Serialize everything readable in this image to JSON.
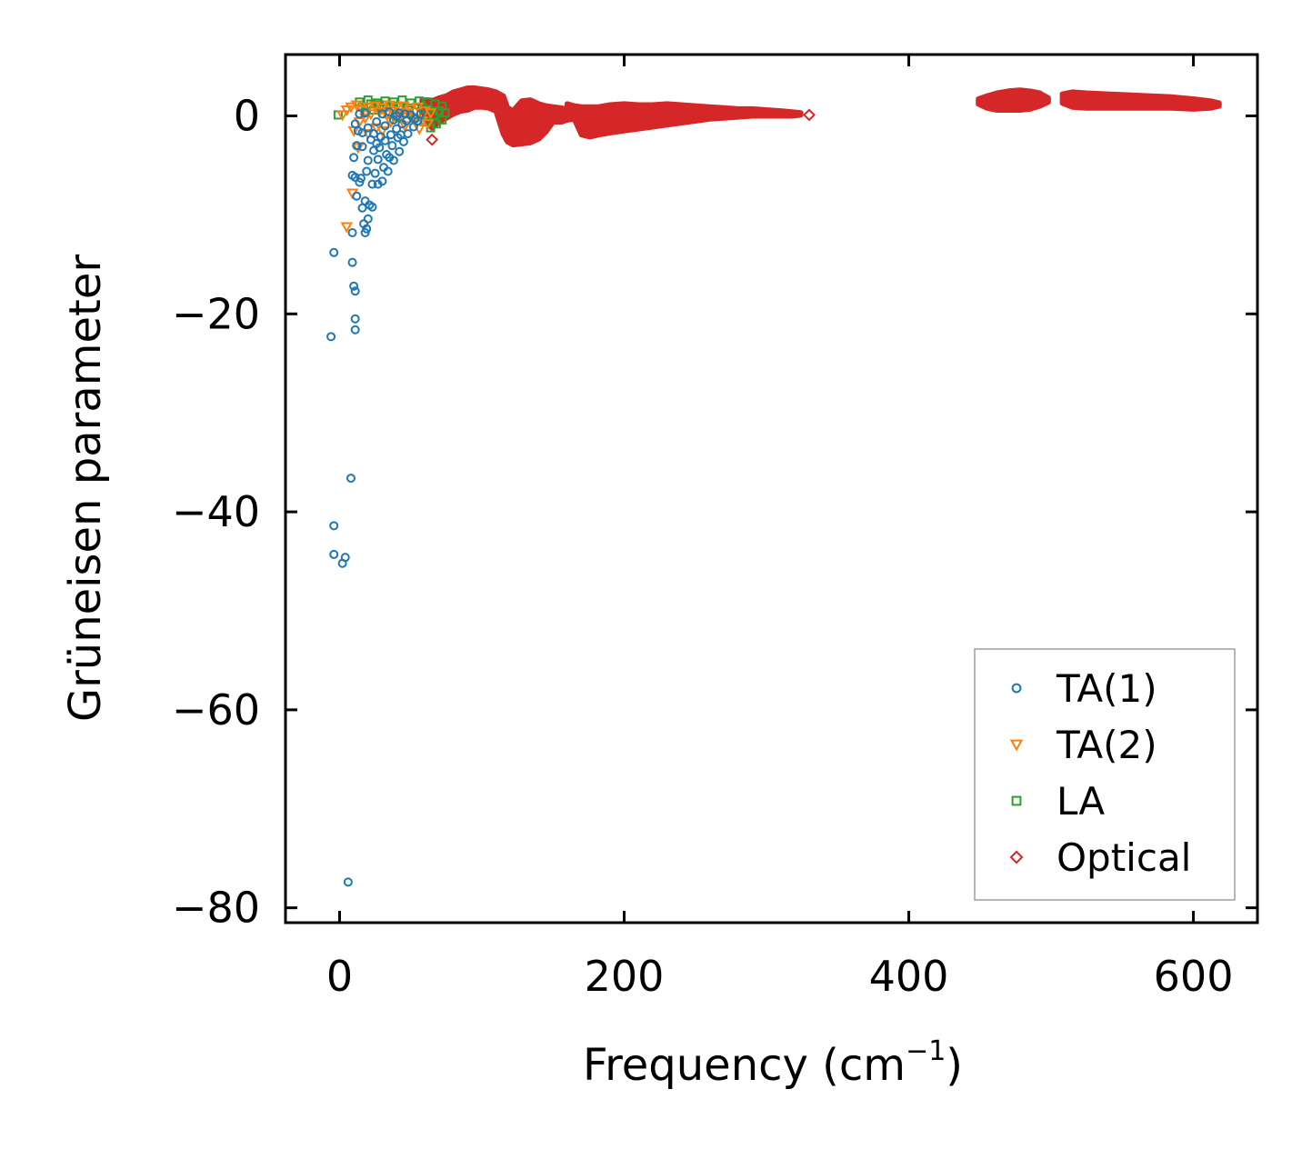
{
  "chart_data": {
    "type": "scatter",
    "title": "",
    "xlabel": "Frequency (cm",
    "xlabel_sup": "−1",
    "xlabel_close": ")",
    "ylabel": "Grüneisen parameter",
    "xlim": [
      -38,
      645
    ],
    "ylim": [
      -81.5,
      6.2
    ],
    "xticks": [
      0,
      200,
      400,
      600
    ],
    "xtick_labels": [
      "0",
      "200",
      "400",
      "600"
    ],
    "yticks": [
      0,
      -20,
      -40,
      -60,
      -80
    ],
    "ytick_labels": [
      "0",
      "−20",
      "−40",
      "−60",
      "−80"
    ],
    "grid": false,
    "legend_position": "lower-right",
    "series": [
      {
        "name": "TA(1)",
        "marker": "circle",
        "color": "#1f77b4",
        "points": [
          [
            -6,
            -22.3
          ],
          [
            -4,
            -13.8
          ],
          [
            -4,
            -41.4
          ],
          [
            -4,
            -44.3
          ],
          [
            2,
            -45.2
          ],
          [
            4,
            -44.6
          ],
          [
            6,
            -77.4
          ],
          [
            8,
            -36.6
          ],
          [
            9,
            -11.8
          ],
          [
            9,
            -14.8
          ],
          [
            10,
            -17.2
          ],
          [
            11,
            -17.7
          ],
          [
            11,
            -20.5
          ],
          [
            11,
            -21.6
          ],
          [
            9,
            -6
          ],
          [
            11,
            -6.2
          ],
          [
            12,
            -8.1
          ],
          [
            10,
            -4.2
          ],
          [
            12,
            -3
          ],
          [
            14,
            -6.7
          ],
          [
            16,
            -9.3
          ],
          [
            17,
            -10.9
          ],
          [
            18,
            -11.8
          ],
          [
            19,
            -11.4
          ],
          [
            20,
            -10.4
          ],
          [
            21,
            -9
          ],
          [
            23,
            -9.2
          ],
          [
            18,
            -8.6
          ],
          [
            15,
            -6.3
          ],
          [
            13,
            -1.5
          ],
          [
            11,
            -0.8
          ],
          [
            16,
            -3.1
          ],
          [
            20,
            -4.5
          ],
          [
            25,
            -5.8
          ],
          [
            30,
            -6.6
          ],
          [
            34,
            -5.6
          ],
          [
            38,
            -4.5
          ],
          [
            42,
            -3.6
          ],
          [
            45,
            -2.6
          ],
          [
            48,
            -1.8
          ],
          [
            52,
            -1.1
          ],
          [
            55,
            -0.5
          ],
          [
            28,
            -3.2
          ],
          [
            32,
            -2.5
          ],
          [
            36,
            -1.9
          ],
          [
            40,
            -1.3
          ],
          [
            44,
            -0.8
          ],
          [
            24,
            -1.8
          ],
          [
            20,
            -1.2
          ],
          [
            26,
            -0.6
          ],
          [
            30,
            0.2
          ],
          [
            35,
            0.4
          ],
          [
            40,
            0
          ],
          [
            46,
            0.2
          ],
          [
            50,
            0.1
          ],
          [
            18,
            0.3
          ],
          [
            14,
            0.2
          ],
          [
            22,
            -2.4
          ],
          [
            27,
            -4.4
          ],
          [
            33,
            -3.9
          ],
          [
            37,
            -3
          ],
          [
            41,
            -2.2
          ],
          [
            31,
            -5.2
          ],
          [
            35,
            -4.2
          ],
          [
            24,
            -3.5
          ],
          [
            29,
            -2.1
          ],
          [
            43,
            -1.9
          ],
          [
            47,
            -0.5
          ],
          [
            53,
            -0.3
          ],
          [
            57,
            0.2
          ],
          [
            19,
            -5.6
          ],
          [
            23,
            -6.9
          ],
          [
            27,
            -6.9
          ],
          [
            16,
            -1.7
          ],
          [
            26,
            -2.8
          ],
          [
            32,
            -1
          ],
          [
            38,
            -0.4
          ],
          [
            42,
            0.3
          ]
        ]
      },
      {
        "name": "TA(2)",
        "marker": "triangle",
        "color": "#ff7f0e",
        "points": [
          [
            2,
            0.1
          ],
          [
            5,
            0.6
          ],
          [
            8,
            0.9
          ],
          [
            12,
            1.1
          ],
          [
            16,
            0.6
          ],
          [
            20,
            0.9
          ],
          [
            25,
            1
          ],
          [
            30,
            0.8
          ],
          [
            35,
            1.1
          ],
          [
            40,
            0.9
          ],
          [
            45,
            1
          ],
          [
            50,
            0.7
          ],
          [
            55,
            0.9
          ],
          [
            60,
            0.5
          ],
          [
            64,
            0.3
          ],
          [
            14,
            -0.6
          ],
          [
            18,
            -0.2
          ],
          [
            22,
            0.2
          ],
          [
            28,
            0.4
          ],
          [
            33,
            0.2
          ],
          [
            38,
            0.5
          ],
          [
            43,
            0.1
          ],
          [
            48,
            0.3
          ],
          [
            53,
            -0.3
          ],
          [
            58,
            -0.5
          ],
          [
            62,
            -0.8
          ],
          [
            10,
            -1.5
          ],
          [
            9,
            -7.8
          ],
          [
            5,
            -11.2
          ],
          [
            13,
            -3.2
          ],
          [
            26,
            -1.2
          ],
          [
            36,
            -0.6
          ],
          [
            46,
            -1
          ],
          [
            56,
            -1.3
          ],
          [
            20,
            -1.8
          ],
          [
            30,
            -1.5
          ]
        ]
      },
      {
        "name": "LA",
        "marker": "square",
        "color": "#2ca02c",
        "points": [
          [
            -1,
            0.1
          ],
          [
            14,
            1.4
          ],
          [
            20,
            1.6
          ],
          [
            26,
            1.3
          ],
          [
            32,
            1.5
          ],
          [
            38,
            1.4
          ],
          [
            44,
            1.6
          ],
          [
            50,
            1.3
          ],
          [
            56,
            1.5
          ],
          [
            62,
            1.4
          ],
          [
            67,
            1.2
          ],
          [
            72,
            1
          ],
          [
            74,
            0.3
          ],
          [
            72,
            -0.4
          ],
          [
            68,
            -0.8
          ],
          [
            64,
            -1.2
          ],
          [
            60,
            -0.6
          ],
          [
            54,
            0.4
          ],
          [
            48,
            0.8
          ],
          [
            42,
            1
          ],
          [
            36,
            0.9
          ],
          [
            30,
            0.7
          ],
          [
            24,
            0.6
          ],
          [
            18,
            0.4
          ],
          [
            70,
            0.5
          ],
          [
            66,
            0.1
          ],
          [
            58,
            0.9
          ],
          [
            52,
            -0.2
          ],
          [
            46,
            0.3
          ],
          [
            40,
            -0.1
          ],
          [
            34,
            0.2
          ],
          [
            28,
            1.1
          ],
          [
            22,
            1.2
          ],
          [
            16,
            0.9
          ]
        ]
      },
      {
        "name": "Optical",
        "marker": "diamond",
        "color": "#d62728",
        "bands": [
          [
            [
              58,
              0.6,
              1.6
            ],
            [
              62,
              -0.8,
              1.6
            ],
            [
              65,
              -1.2,
              1.5
            ],
            [
              70,
              -0.6,
              1.8
            ],
            [
              75,
              -0.2,
              2
            ],
            [
              80,
              0.2,
              2.4
            ],
            [
              85,
              0.5,
              2.6
            ],
            [
              90,
              0.6,
              2.8
            ],
            [
              95,
              0.9,
              2.8
            ],
            [
              100,
              0.9,
              2.7
            ],
            [
              105,
              0.8,
              2.6
            ],
            [
              110,
              0.5,
              2.4
            ],
            [
              115,
              -1.8,
              2
            ],
            [
              118,
              -2.6,
              0.8
            ],
            [
              122,
              -2.9,
              0.5
            ],
            [
              128,
              -2.8,
              1.5
            ],
            [
              134,
              -2.7,
              1.6
            ],
            [
              140,
              -2.3,
              1.2
            ],
            [
              145,
              -1.6,
              1
            ],
            [
              150,
              -0.6,
              0.9
            ],
            [
              156,
              -0.6,
              0.8
            ],
            [
              160,
              -0.4,
              0.6
            ]
          ],
          [
            [
              160,
              -0.4,
              1.2
            ],
            [
              165,
              -0.3,
              1
            ],
            [
              170,
              -1.9,
              0.9
            ],
            [
              176,
              -2.1,
              0.9
            ],
            [
              182,
              -1.9,
              0.9
            ],
            [
              190,
              -1.7,
              1.1
            ],
            [
              200,
              -1.5,
              1.2
            ],
            [
              210,
              -1.3,
              1.1
            ],
            [
              220,
              -1.1,
              1.1
            ],
            [
              230,
              -0.9,
              1.2
            ],
            [
              240,
              -0.7,
              1.1
            ],
            [
              250,
              -0.5,
              1
            ],
            [
              260,
              -0.3,
              0.9
            ],
            [
              270,
              -0.2,
              0.8
            ],
            [
              280,
              -0.1,
              0.7
            ],
            [
              290,
              0,
              0.7
            ],
            [
              300,
              0,
              0.6
            ],
            [
              310,
              0,
              0.5
            ],
            [
              318,
              0,
              0.4
            ],
            [
              324,
              0.1,
              0.3
            ]
          ],
          [
            [
              449,
              1.2,
              1.7
            ],
            [
              455,
              0.8,
              2
            ],
            [
              462,
              0.6,
              2.3
            ],
            [
              470,
              0.6,
              2.5
            ],
            [
              478,
              0.6,
              2.6
            ],
            [
              485,
              0.7,
              2.5
            ],
            [
              492,
              1,
              2.3
            ],
            [
              498,
              1.4,
              1.8
            ]
          ],
          [
            [
              508,
              1.3,
              2.2
            ],
            [
              515,
              0.9,
              2.4
            ],
            [
              525,
              0.8,
              2.3
            ],
            [
              540,
              0.8,
              2.2
            ],
            [
              555,
              0.8,
              2.1
            ],
            [
              570,
              0.8,
              2
            ],
            [
              585,
              0.8,
              1.9
            ],
            [
              600,
              0.7,
              1.7
            ],
            [
              612,
              0.8,
              1.5
            ],
            [
              618,
              1,
              1.3
            ]
          ]
        ],
        "points": [
          [
            65,
            -2.4
          ],
          [
            330,
            0.1
          ],
          [
            160,
            0.3
          ]
        ]
      }
    ]
  }
}
